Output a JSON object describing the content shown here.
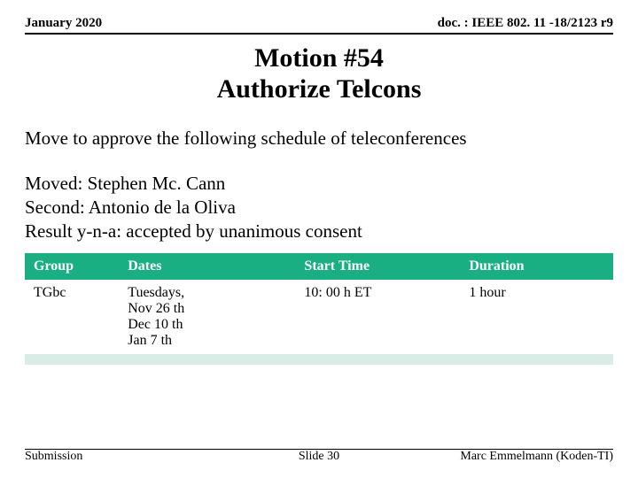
{
  "header": {
    "date": "January 2020",
    "doc": "doc. : IEEE 802. 11 -18/2123 r9"
  },
  "title": {
    "line1": "Motion #54",
    "line2": "Authorize Telcons"
  },
  "motion": {
    "text": "Move to approve the following schedule of teleconferences",
    "moved": "Moved: Stephen Mc. Cann",
    "second": "Second: Antonio de la Oliva",
    "result": "Result y-n-a: accepted by unanimous consent"
  },
  "table": {
    "header_bg": "#1aaf82",
    "row_bg_a": "#ffffff",
    "row_bg_b": "#d9ece6",
    "cols": [
      "Group",
      "Dates",
      "Start Time",
      "Duration"
    ],
    "rows": [
      {
        "group": "TGbc",
        "dates": "Tuesdays,\nNov 26 th\nDec 10 th\nJan 7 th",
        "start": "10: 00 h ET",
        "dur": "1 hour"
      },
      {
        "group": "",
        "dates": "",
        "start": "",
        "dur": ""
      },
      {
        "group": "",
        "dates": "",
        "start": "",
        "dur": ""
      }
    ]
  },
  "footer": {
    "left": "Submission",
    "center": "Slide 30",
    "right": "Marc Emmelmann (Koden-TI)"
  }
}
